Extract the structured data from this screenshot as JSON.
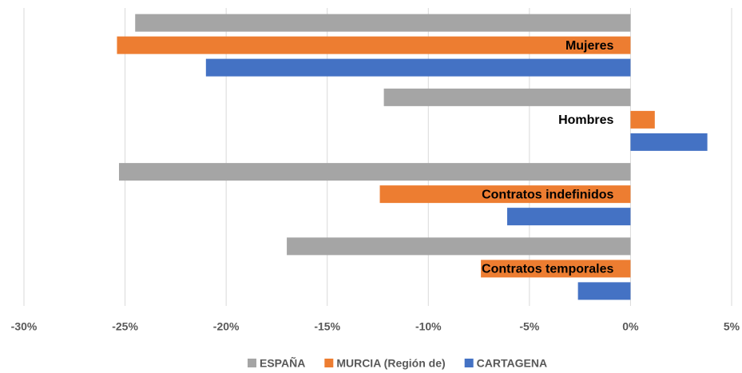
{
  "chart_data": {
    "type": "hbar",
    "categories": [
      "Mujeres",
      "Hombres",
      "Contratos indefinidos",
      "Contratos temporales"
    ],
    "series": [
      {
        "name": "ESPAÑA",
        "color": "#a5a5a5",
        "values": [
          -24.5,
          -12.2,
          -25.3,
          -17.0
        ]
      },
      {
        "name": "MURCIA (Región de)",
        "color": "#ed7d31",
        "values": [
          -25.4,
          1.2,
          -12.4,
          -7.4
        ]
      },
      {
        "name": "CARTAGENA",
        "color": "#4472c4",
        "values": [
          -21.0,
          3.8,
          -6.1,
          -2.6
        ]
      }
    ],
    "xlim": [
      -30,
      5
    ],
    "xticks": [
      {
        "value": -30,
        "label": "-30%"
      },
      {
        "value": -25,
        "label": "-25%"
      },
      {
        "value": -20,
        "label": "-20%"
      },
      {
        "value": -15,
        "label": "-15%"
      },
      {
        "value": -10,
        "label": "-10%"
      },
      {
        "value": -5,
        "label": "-5%"
      },
      {
        "value": 0,
        "label": "0%"
      },
      {
        "value": 5,
        "label": "5%"
      }
    ],
    "grid": true,
    "legend": "bottom"
  }
}
